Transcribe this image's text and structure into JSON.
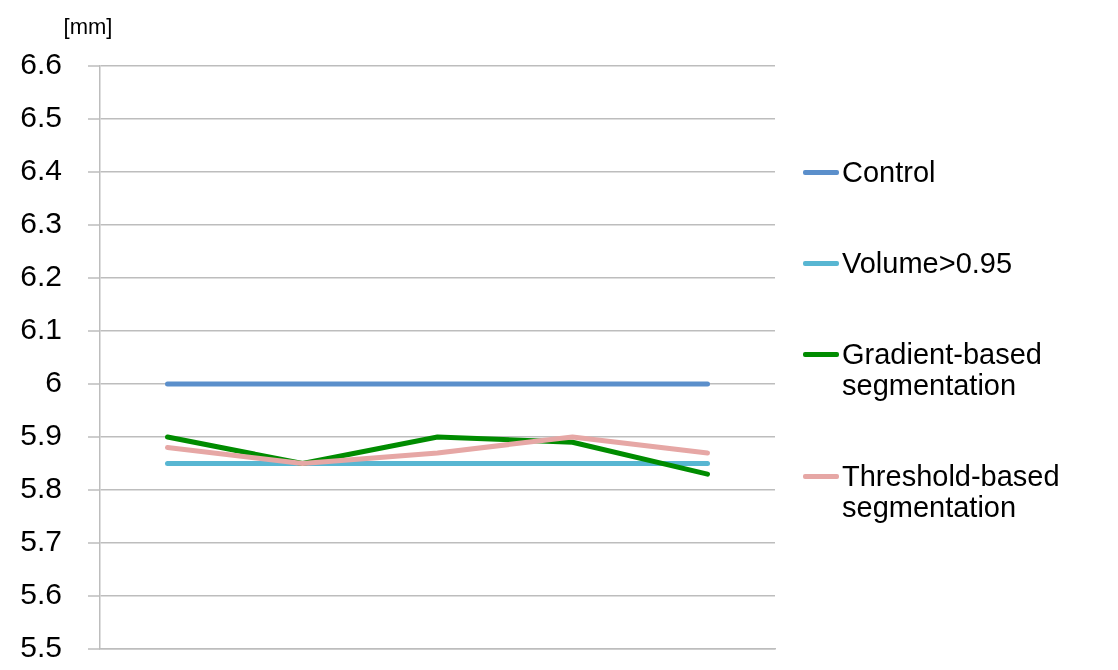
{
  "chart_data": {
    "type": "line",
    "ylabel": "[mm]",
    "categories": [
      null,
      null,
      null,
      null,
      null
    ],
    "series": [
      {
        "name": "Control",
        "color": "#5b8fcb",
        "values": [
          6,
          6,
          6,
          6,
          6
        ]
      },
      {
        "name": "Volume>0.95",
        "color": "#58b6d2",
        "values": [
          5.85,
          5.85,
          5.85,
          5.85,
          5.85
        ]
      },
      {
        "name": "Gradient-based segmentation",
        "color": "#008c00",
        "values": [
          5.9,
          5.85,
          5.9,
          5.89,
          5.83
        ]
      },
      {
        "name": "Threshold-based segmentation",
        "color": "#e6a7a5",
        "values": [
          5.88,
          5.85,
          5.87,
          5.9,
          5.87
        ]
      }
    ],
    "ylim": [
      5.5,
      6.6
    ],
    "yticks": [
      5.5,
      5.6,
      5.7,
      5.8,
      5.9,
      6,
      6.1,
      6.2,
      6.3,
      6.4,
      6.5,
      6.6
    ],
    "grid": "y",
    "legend": "right",
    "marker": "none",
    "line_style": "solid"
  }
}
